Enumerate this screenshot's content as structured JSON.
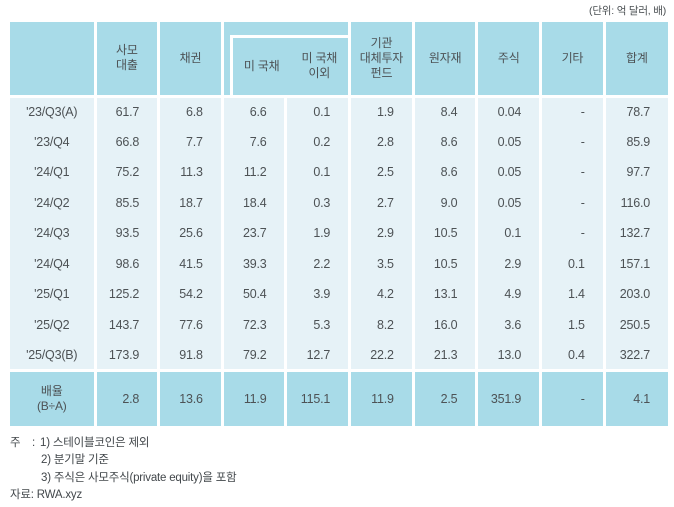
{
  "unit_label": "(단위: 억 달러, 배)",
  "table": {
    "columns": [
      "사모\n대출",
      "채권",
      "미 국채",
      "미 국채\n이외",
      "기관\n대체투자\n펀드",
      "원자재",
      "주식",
      "기타",
      "합계"
    ],
    "rows": [
      {
        "label": "'23/Q3(A)",
        "values": [
          "61.7",
          "6.8",
          "6.6",
          "0.1",
          "1.9",
          "8.4",
          "0.04",
          "-",
          "78.7"
        ]
      },
      {
        "label": "'23/Q4",
        "values": [
          "66.8",
          "7.7",
          "7.6",
          "0.2",
          "2.8",
          "8.6",
          "0.05",
          "-",
          "85.9"
        ]
      },
      {
        "label": "'24/Q1",
        "values": [
          "75.2",
          "11.3",
          "11.2",
          "0.1",
          "2.5",
          "8.6",
          "0.05",
          "-",
          "97.7"
        ]
      },
      {
        "label": "'24/Q2",
        "values": [
          "85.5",
          "18.7",
          "18.4",
          "0.3",
          "2.7",
          "9.0",
          "0.05",
          "-",
          "116.0"
        ]
      },
      {
        "label": "'24/Q3",
        "values": [
          "93.5",
          "25.6",
          "23.7",
          "1.9",
          "2.9",
          "10.5",
          "0.1",
          "-",
          "132.7"
        ]
      },
      {
        "label": "'24/Q4",
        "values": [
          "98.6",
          "41.5",
          "39.3",
          "2.2",
          "3.5",
          "10.5",
          "2.9",
          "0.1",
          "157.1"
        ]
      },
      {
        "label": "'25/Q1",
        "values": [
          "125.2",
          "54.2",
          "50.4",
          "3.9",
          "4.2",
          "13.1",
          "4.9",
          "1.4",
          "203.0"
        ]
      },
      {
        "label": "'25/Q2",
        "values": [
          "143.7",
          "77.6",
          "72.3",
          "5.3",
          "8.2",
          "16.0",
          "3.6",
          "1.5",
          "250.5"
        ]
      },
      {
        "label": "'25/Q3(B)",
        "values": [
          "173.9",
          "91.8",
          "79.2",
          "12.7",
          "22.2",
          "21.3",
          "13.0",
          "0.4",
          "322.7"
        ]
      }
    ],
    "ratio_row": {
      "label": "배율\n(B÷A)",
      "values": [
        "2.8",
        "13.6",
        "11.9",
        "115.1",
        "11.9",
        "2.5",
        "351.9",
        "-",
        "4.1"
      ]
    }
  },
  "notes": {
    "prefix": "주",
    "colon": ":",
    "items": [
      "1) 스테이블코인은 제외",
      "2) 분기말 기준",
      "3) 주식은 사모주식(private equity)을 포함"
    ],
    "source": "자료: RWA.xyz"
  },
  "colors": {
    "header_blue": "#a8dbe8",
    "cell_light_blue": "#e6f2f7",
    "separator_white": "#ffffff",
    "text_gray": "#4d5255"
  }
}
